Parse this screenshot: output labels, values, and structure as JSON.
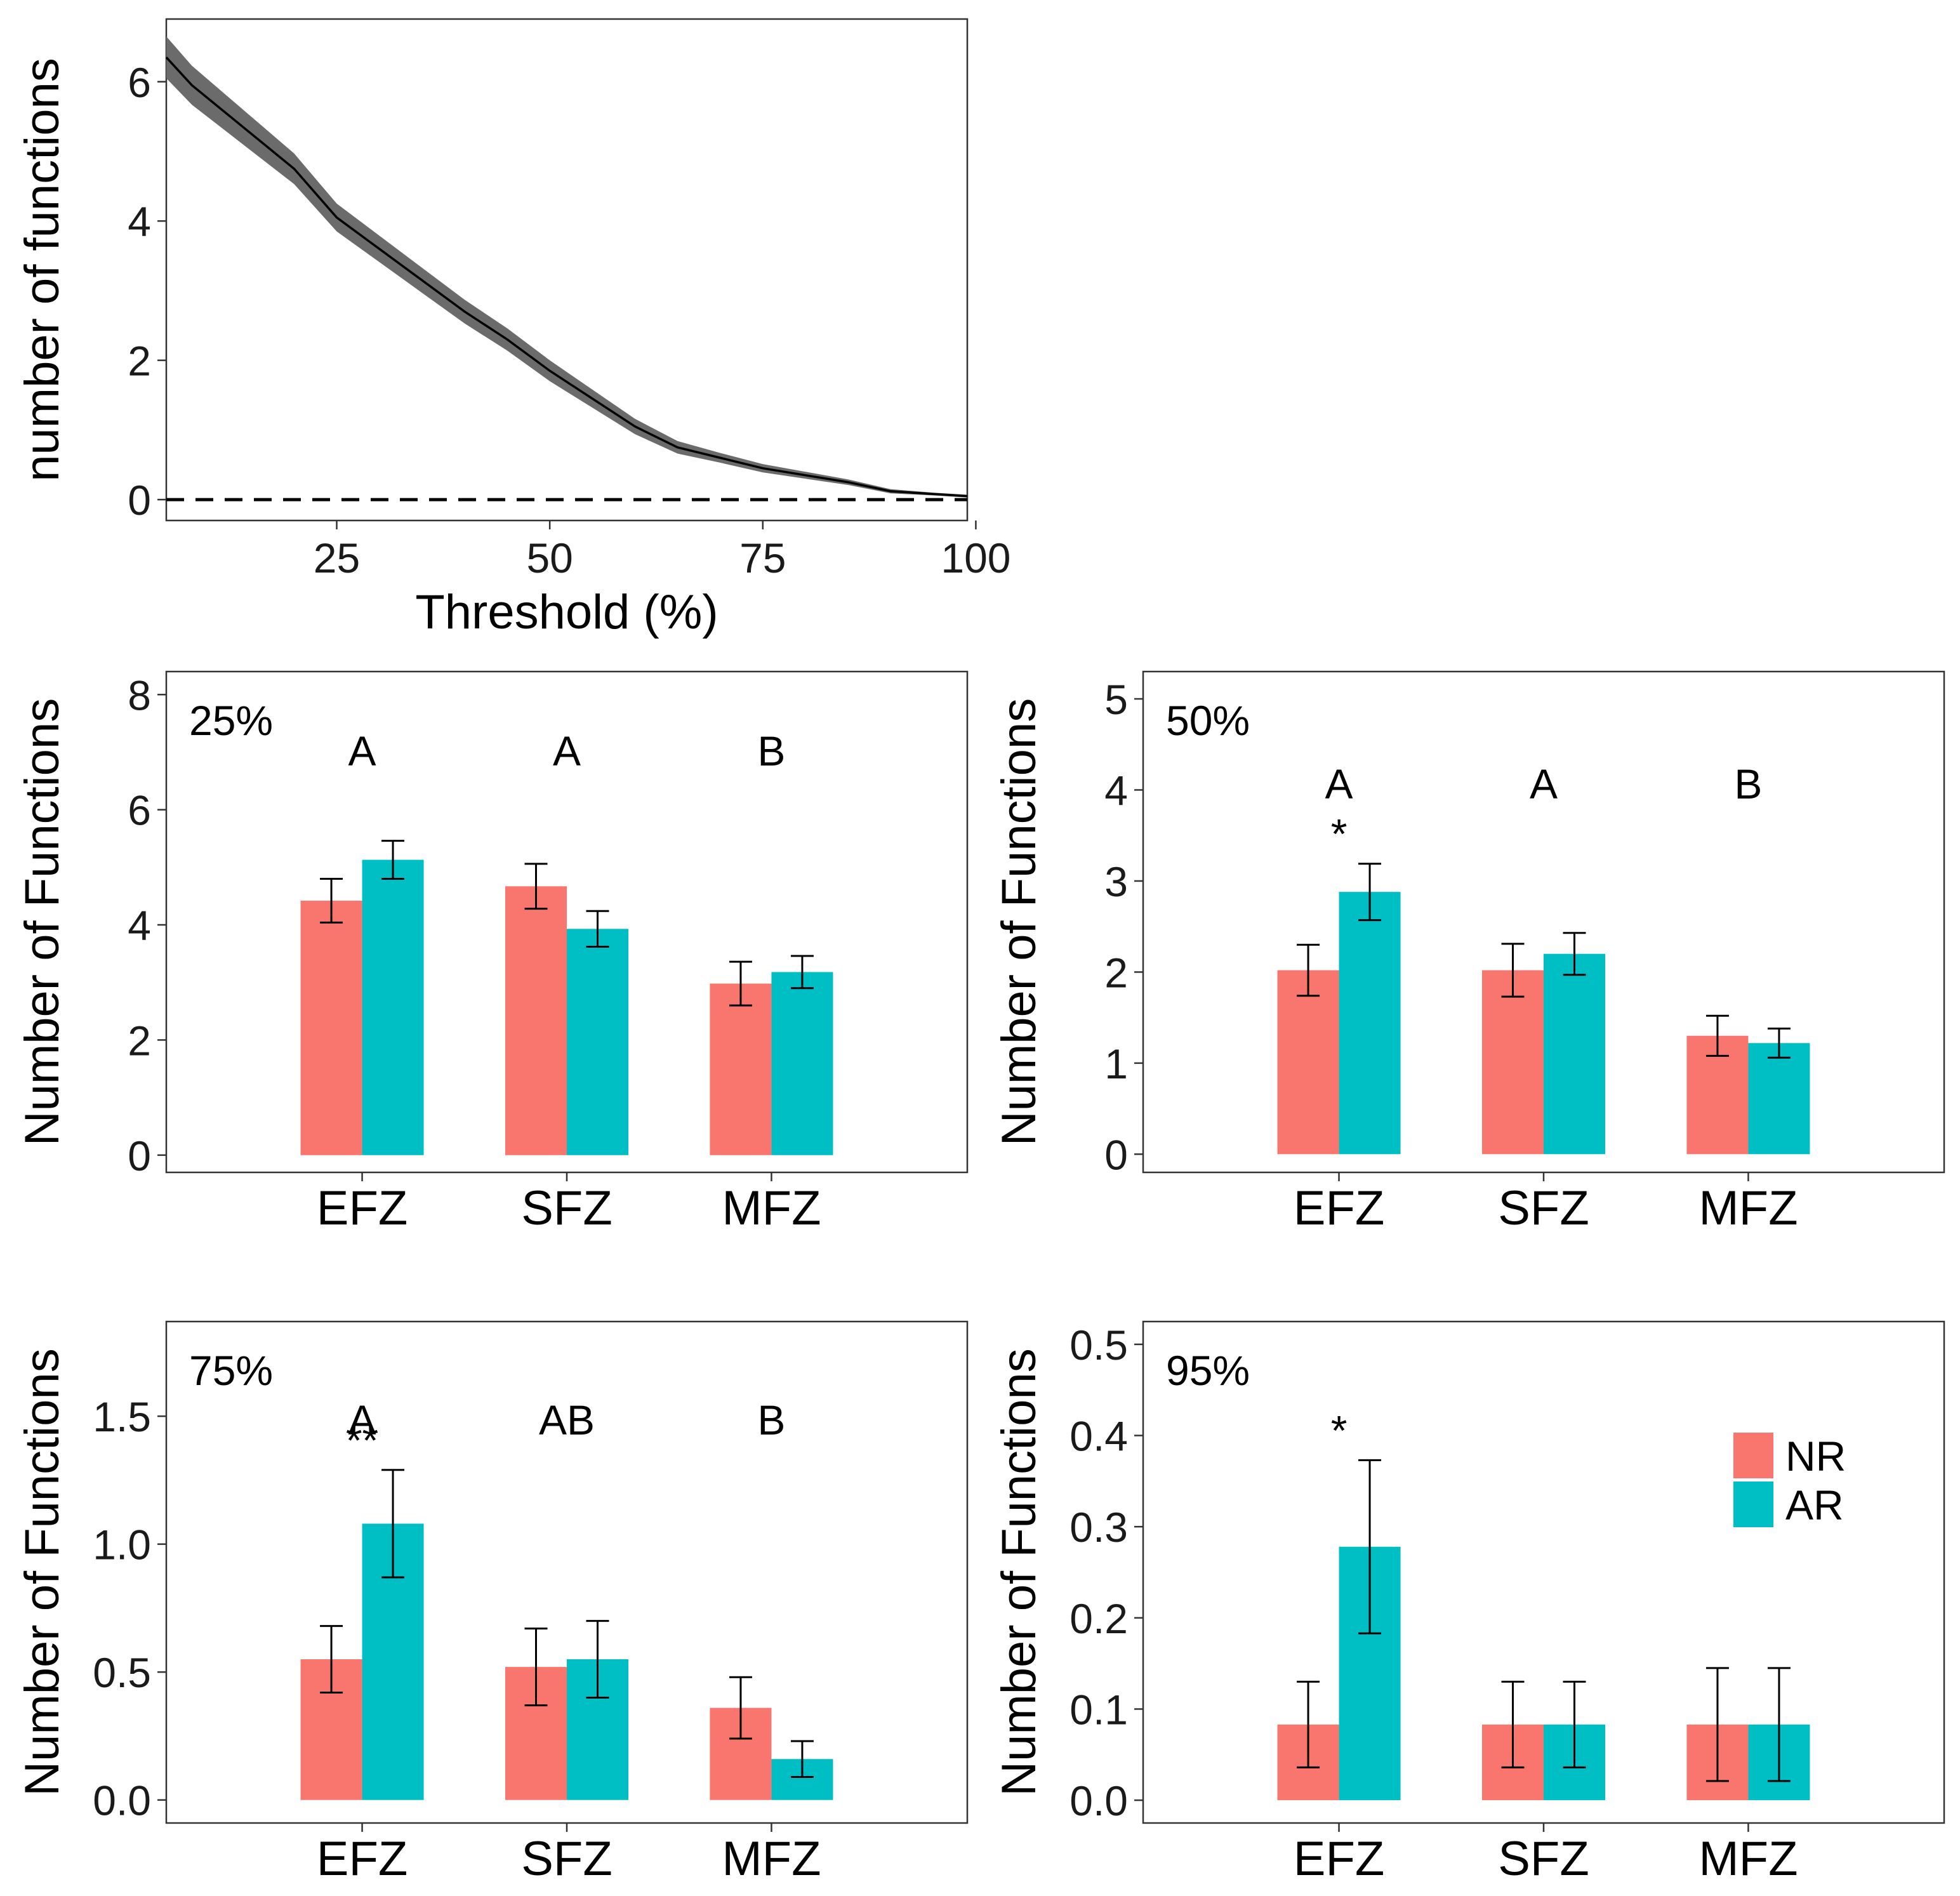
{
  "chart_data": [
    {
      "id": "line",
      "type": "area",
      "xlabel": "Threshold (%)",
      "ylabel": "number of functions",
      "xlim": [
        5,
        99
      ],
      "ylim": [
        -0.3,
        6.9
      ],
      "xticks": [
        25,
        50,
        75,
        100
      ],
      "yticks": [
        0,
        2,
        4,
        6
      ],
      "reference_line": {
        "y": 0,
        "style": "dashed"
      },
      "series": [
        {
          "name": "mean",
          "x": [
            5,
            8,
            12,
            16,
            20,
            25,
            30,
            35,
            40,
            45,
            50,
            55,
            60,
            65,
            70,
            75,
            80,
            85,
            90,
            95,
            99
          ],
          "y": [
            6.35,
            5.95,
            5.55,
            5.15,
            4.75,
            4.05,
            3.6,
            3.15,
            2.7,
            2.3,
            1.85,
            1.45,
            1.05,
            0.75,
            0.6,
            0.45,
            0.35,
            0.25,
            0.12,
            0.08,
            0.05
          ],
          "band": [
            0.3,
            0.28,
            0.26,
            0.24,
            0.22,
            0.2,
            0.19,
            0.18,
            0.17,
            0.16,
            0.15,
            0.13,
            0.11,
            0.09,
            0.07,
            0.06,
            0.05,
            0.04,
            0.03,
            0.02,
            0.02
          ]
        }
      ]
    },
    {
      "id": "t25",
      "type": "bar",
      "panel_label": "25%",
      "ylabel": "Number of Functions",
      "categories": [
        "EFZ",
        "SFZ",
        "MFZ"
      ],
      "group_letters": [
        "A",
        "A",
        "B"
      ],
      "significance": [
        "",
        "",
        ""
      ],
      "ylim": [
        -0.3,
        8.4
      ],
      "yticks": [
        0,
        2,
        4,
        6,
        8
      ],
      "ytick_labels": [
        "0",
        "2",
        "4",
        "6",
        "8"
      ],
      "series": [
        {
          "name": "NR",
          "color": "#F8766D",
          "values": [
            4.42,
            4.67,
            2.98
          ],
          "err": [
            0.38,
            0.39,
            0.38
          ]
        },
        {
          "name": "AR",
          "color": "#00BFC4",
          "values": [
            5.13,
            3.93,
            3.18
          ],
          "err": [
            0.33,
            0.31,
            0.28
          ]
        }
      ]
    },
    {
      "id": "t50",
      "type": "bar",
      "panel_label": "50%",
      "ylabel": "Number of Functions",
      "categories": [
        "EFZ",
        "SFZ",
        "MFZ"
      ],
      "group_letters": [
        "A",
        "A",
        "B"
      ],
      "significance": [
        "*",
        "",
        ""
      ],
      "ylim": [
        -0.2,
        5.3
      ],
      "yticks": [
        0,
        1,
        2,
        3,
        4,
        5
      ],
      "ytick_labels": [
        "0",
        "1",
        "2",
        "3",
        "4",
        "5"
      ],
      "series": [
        {
          "name": "NR",
          "color": "#F8766D",
          "values": [
            2.02,
            2.02,
            1.3
          ],
          "err": [
            0.28,
            0.29,
            0.22
          ]
        },
        {
          "name": "AR",
          "color": "#00BFC4",
          "values": [
            2.88,
            2.2,
            1.22
          ],
          "err": [
            0.31,
            0.23,
            0.16
          ]
        }
      ]
    },
    {
      "id": "t75",
      "type": "bar",
      "panel_label": "75%",
      "ylabel": "Number of Functions",
      "categories": [
        "EFZ",
        "SFZ",
        "MFZ"
      ],
      "group_letters": [
        "A",
        "AB",
        "B"
      ],
      "significance": [
        "**",
        "",
        ""
      ],
      "ylim": [
        -0.09,
        1.87
      ],
      "yticks": [
        0,
        0.5,
        1.0,
        1.5
      ],
      "ytick_labels": [
        "0.0",
        "0.5",
        "1.0",
        "1.5"
      ],
      "series": [
        {
          "name": "NR",
          "color": "#F8766D",
          "values": [
            0.55,
            0.52,
            0.36
          ],
          "err": [
            0.13,
            0.15,
            0.12
          ]
        },
        {
          "name": "AR",
          "color": "#00BFC4",
          "values": [
            1.08,
            0.55,
            0.16
          ],
          "err": [
            0.21,
            0.15,
            0.07
          ]
        }
      ]
    },
    {
      "id": "t95",
      "type": "bar",
      "panel_label": "95%",
      "ylabel": "Number of Functions",
      "categories": [
        "EFZ",
        "SFZ",
        "MFZ"
      ],
      "group_letters": [
        "",
        "",
        ""
      ],
      "significance": [
        "*",
        "",
        ""
      ],
      "ylim": [
        -0.025,
        0.525
      ],
      "yticks": [
        0,
        0.1,
        0.2,
        0.3,
        0.4,
        0.5
      ],
      "ytick_labels": [
        "0.0",
        "0.1",
        "0.2",
        "0.3",
        "0.4",
        "0.5"
      ],
      "legend": [
        "NR",
        "AR"
      ],
      "series": [
        {
          "name": "NR",
          "color": "#F8766D",
          "values": [
            0.083,
            0.083,
            0.083
          ],
          "err": [
            0.047,
            0.047,
            0.062
          ]
        },
        {
          "name": "AR",
          "color": "#00BFC4",
          "values": [
            0.278,
            0.083,
            0.083
          ],
          "err": [
            0.095,
            0.047,
            0.062
          ]
        }
      ]
    }
  ]
}
